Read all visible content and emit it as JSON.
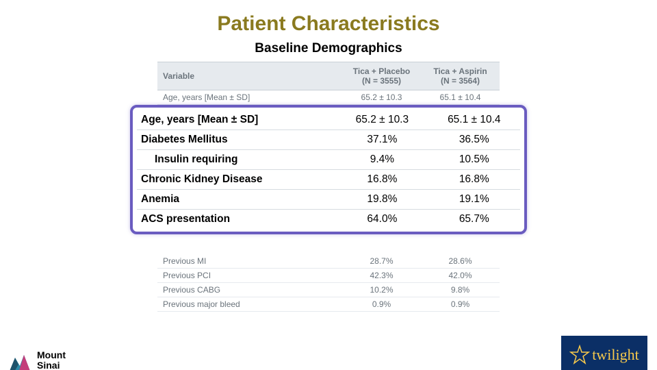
{
  "title": "Patient Characteristics",
  "subtitle": "Baseline Demographics",
  "title_color": "#8a7a1f",
  "highlight_border": "#6a5cc0",
  "header": {
    "variable": "Variable",
    "col2": "Tica + Placebo\n(N = 3555)",
    "col3": "Tica + Aspirin\n(N = 3564)"
  },
  "faded_row": {
    "label": "Age, years [Mean ± SD]",
    "v1": "65.2 ± 10.3",
    "v2": "65.1 ± 10.4"
  },
  "overlay_rows": [
    {
      "label": "Age, years [Mean ± SD]",
      "v1": "65.2 ± 10.3",
      "v2": "65.1 ± 10.4",
      "bold": true
    },
    {
      "label": "Diabetes Mellitus",
      "v1": "37.1%",
      "v2": "36.5%",
      "bold": true
    },
    {
      "label": "Insulin requiring",
      "v1": "9.4%",
      "v2": "10.5%",
      "indent": true
    },
    {
      "label": "Chronic Kidney Disease",
      "v1": "16.8%",
      "v2": "16.8%",
      "bold": true
    },
    {
      "label": "Anemia",
      "v1": "19.8%",
      "v2": "19.1%",
      "bold": true
    },
    {
      "label": "ACS presentation",
      "v1": "64.0%",
      "v2": "65.7%",
      "bold": true
    }
  ],
  "after_rows": [
    {
      "label": "Previous MI",
      "v1": "28.7%",
      "v2": "28.6%"
    },
    {
      "label": "Previous PCI",
      "v1": "42.3%",
      "v2": "42.0%"
    },
    {
      "label": "Previous CABG",
      "v1": "10.2%",
      "v2": "9.8%"
    },
    {
      "label": "Previous major bleed",
      "v1": "0.9%",
      "v2": "0.9%"
    }
  ],
  "logos": {
    "mount_sinai": "Mount\nSinai",
    "twilight": "twilight"
  }
}
